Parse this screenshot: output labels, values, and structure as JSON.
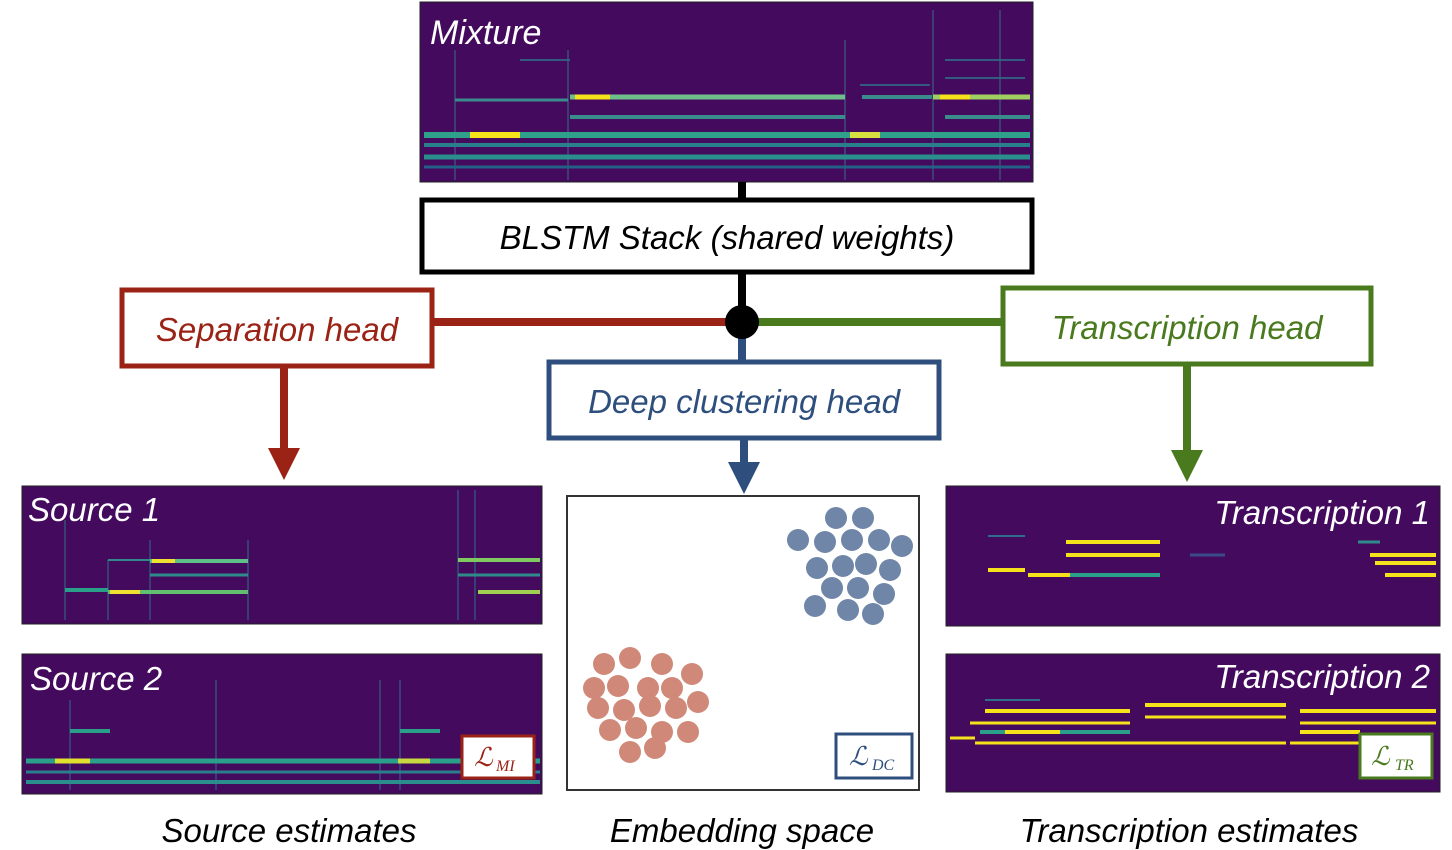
{
  "colors": {
    "separation": "#9b2316",
    "clustering": "#2e4f7e",
    "transcription": "#4a7a1e",
    "spectrogram_bg": "#440a5e",
    "spectrogram_mid": "#3a8c8c",
    "spectrogram_hot": "#f6e21a",
    "cluster_blue": "#6f86a8",
    "cluster_red": "#d08878",
    "black": "#000000"
  },
  "mixture": {
    "label": "Mixture"
  },
  "blstm": {
    "label": "BLSTM Stack (shared weights)"
  },
  "heads": {
    "separation": "Separation head",
    "clustering": "Deep clustering head",
    "transcription": "Transcription head"
  },
  "sources": {
    "source1": "Source 1",
    "source2": "Source 2",
    "loss_label_main": "ℒ",
    "loss_label_sub": "MI"
  },
  "embedding": {
    "loss_label_main": "ℒ",
    "loss_label_sub": "DC"
  },
  "transcriptions": {
    "t1": "Transcription 1",
    "t2": "Transcription 2",
    "loss_label_main": "ℒ",
    "loss_label_sub": "TR"
  },
  "captions": {
    "left": "Source estimates",
    "middle": "Embedding space",
    "right": "Transcription estimates"
  }
}
